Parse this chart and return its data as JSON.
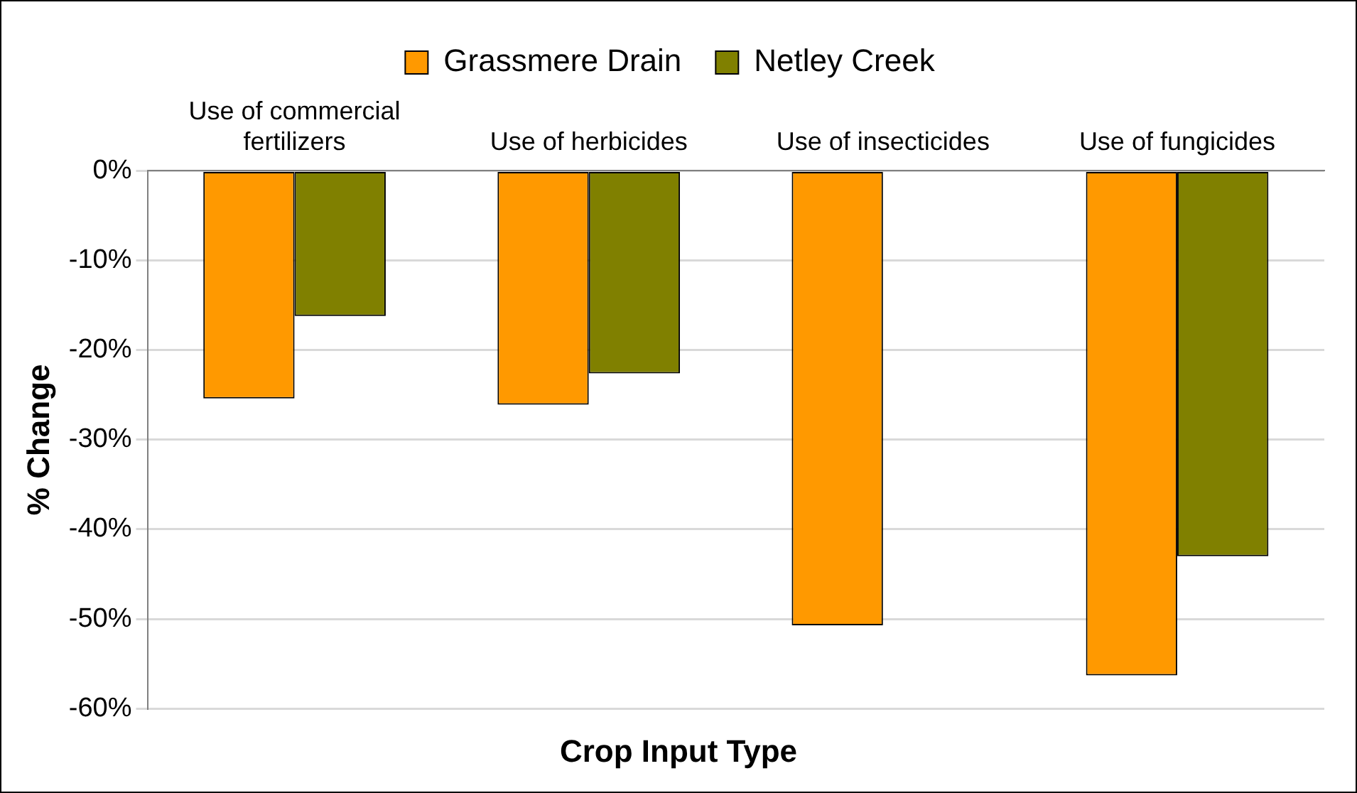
{
  "chart_data": {
    "type": "bar",
    "xlabel": "Crop Input Type",
    "ylabel": "% Change",
    "categories": [
      "Use of commercial fertilizers",
      "Use of herbicides",
      "Use of insecticides",
      "Use of fungicides"
    ],
    "series": [
      {
        "name": "Grassmere Drain",
        "color": "#ff9900",
        "values": [
          -25.4,
          -26.1,
          -50.7,
          -56.3
        ]
      },
      {
        "name": "Netley Creek",
        "color": "#808000",
        "values": [
          -16.2,
          -22.6,
          null,
          -43.0
        ]
      }
    ],
    "ylim": [
      -60,
      0
    ],
    "yticks": [
      {
        "value": 0,
        "label": "0%"
      },
      {
        "value": -10,
        "label": "-10%"
      },
      {
        "value": -20,
        "label": "-20%"
      },
      {
        "value": -30,
        "label": "-30%"
      },
      {
        "value": -40,
        "label": "-40%"
      },
      {
        "value": -50,
        "label": "-50%"
      },
      {
        "value": -60,
        "label": "-60%"
      }
    ],
    "grid": "y",
    "legend": "top"
  }
}
